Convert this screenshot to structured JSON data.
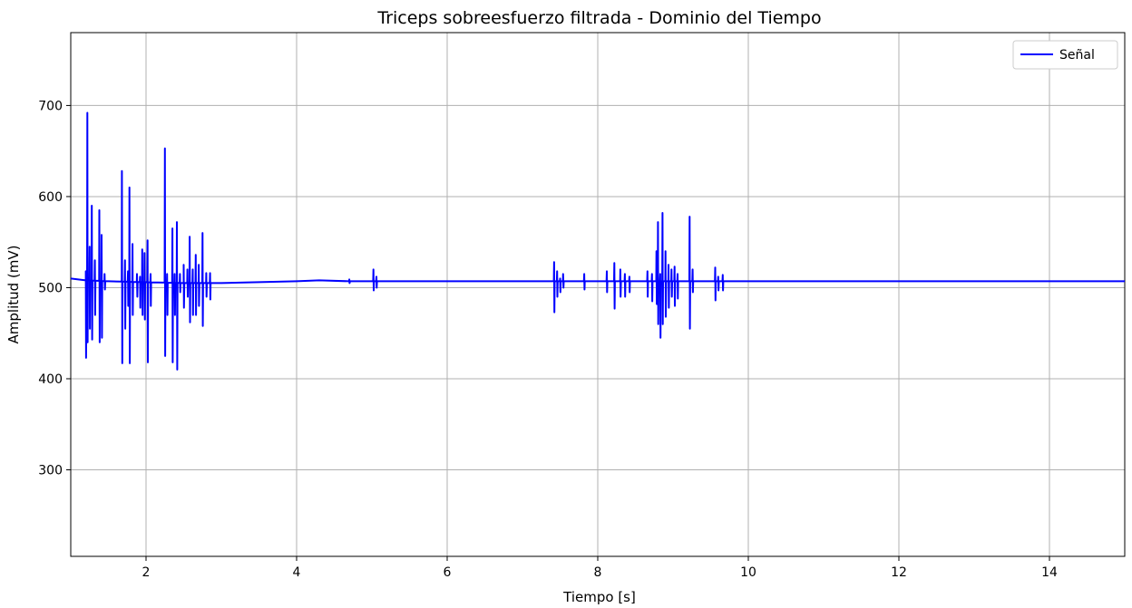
{
  "chart_data": {
    "type": "line",
    "title": "Triceps sobreesfuerzo filtrada - Dominio del Tiempo",
    "xlabel": "Tiempo [s]",
    "ylabel": "Amplitud (mV)",
    "xlim": [
      1.0,
      15.0
    ],
    "ylim": [
      205,
      780
    ],
    "xticks": [
      2,
      4,
      6,
      8,
      10,
      12,
      14
    ],
    "yticks": [
      300,
      400,
      500,
      600,
      700
    ],
    "grid": true,
    "legend": "top-right",
    "series_color": "#0000ff",
    "series": [
      {
        "name": "Señal",
        "baseline": [
          [
            1.0,
            510
          ],
          [
            1.2,
            508
          ],
          [
            1.5,
            507
          ],
          [
            2.0,
            506
          ],
          [
            2.5,
            505
          ],
          [
            3.0,
            505
          ],
          [
            3.5,
            506
          ],
          [
            4.0,
            507
          ],
          [
            4.3,
            508
          ],
          [
            4.7,
            507
          ],
          [
            5.0,
            507
          ],
          [
            6.0,
            507
          ],
          [
            8.0,
            507
          ],
          [
            10.0,
            507
          ],
          [
            12.0,
            507
          ],
          [
            14.0,
            507
          ],
          [
            15.0,
            507
          ]
        ],
        "spikes": [
          [
            1.2,
            518,
            423
          ],
          [
            1.22,
            692,
            440
          ],
          [
            1.25,
            545,
            455
          ],
          [
            1.28,
            590,
            443
          ],
          [
            1.32,
            530,
            470
          ],
          [
            1.38,
            585,
            440
          ],
          [
            1.41,
            558,
            445
          ],
          [
            1.45,
            515,
            498
          ],
          [
            1.68,
            628,
            417
          ],
          [
            1.72,
            530,
            455
          ],
          [
            1.76,
            518,
            480
          ],
          [
            1.78,
            610,
            417
          ],
          [
            1.82,
            548,
            470
          ],
          [
            1.88,
            515,
            490
          ],
          [
            1.92,
            512,
            478
          ],
          [
            1.95,
            542,
            470
          ],
          [
            1.98,
            538,
            465
          ],
          [
            2.02,
            552,
            418
          ],
          [
            2.06,
            515,
            480
          ],
          [
            2.25,
            653,
            425
          ],
          [
            2.28,
            515,
            470
          ],
          [
            2.35,
            565,
            418
          ],
          [
            2.38,
            515,
            470
          ],
          [
            2.41,
            572,
            410
          ],
          [
            2.45,
            515,
            495
          ],
          [
            2.5,
            525,
            478
          ],
          [
            2.55,
            520,
            490
          ],
          [
            2.58,
            556,
            462
          ],
          [
            2.62,
            520,
            470
          ],
          [
            2.66,
            536,
            470
          ],
          [
            2.7,
            525,
            480
          ],
          [
            2.75,
            560,
            458
          ],
          [
            2.8,
            516,
            490
          ],
          [
            2.85,
            516,
            487
          ],
          [
            4.7,
            509,
            505
          ],
          [
            5.02,
            520,
            497
          ],
          [
            5.06,
            512,
            500
          ],
          [
            7.42,
            528,
            473
          ],
          [
            7.46,
            518,
            490
          ],
          [
            7.5,
            510,
            495
          ],
          [
            7.54,
            515,
            500
          ],
          [
            7.82,
            515,
            498
          ],
          [
            8.12,
            518,
            495
          ],
          [
            8.22,
            527,
            477
          ],
          [
            8.3,
            520,
            490
          ],
          [
            8.36,
            515,
            490
          ],
          [
            8.42,
            512,
            495
          ],
          [
            8.66,
            518,
            490
          ],
          [
            8.72,
            515,
            485
          ],
          [
            8.78,
            540,
            482
          ],
          [
            8.8,
            572,
            460
          ],
          [
            8.83,
            515,
            445
          ],
          [
            8.86,
            582,
            460
          ],
          [
            8.9,
            540,
            468
          ],
          [
            8.94,
            525,
            478
          ],
          [
            8.98,
            520,
            490
          ],
          [
            9.02,
            523,
            480
          ],
          [
            9.06,
            515,
            488
          ],
          [
            9.22,
            578,
            455
          ],
          [
            9.26,
            520,
            495
          ],
          [
            9.56,
            522,
            486
          ],
          [
            9.6,
            512,
            497
          ],
          [
            9.66,
            514,
            497
          ]
        ]
      }
    ]
  }
}
